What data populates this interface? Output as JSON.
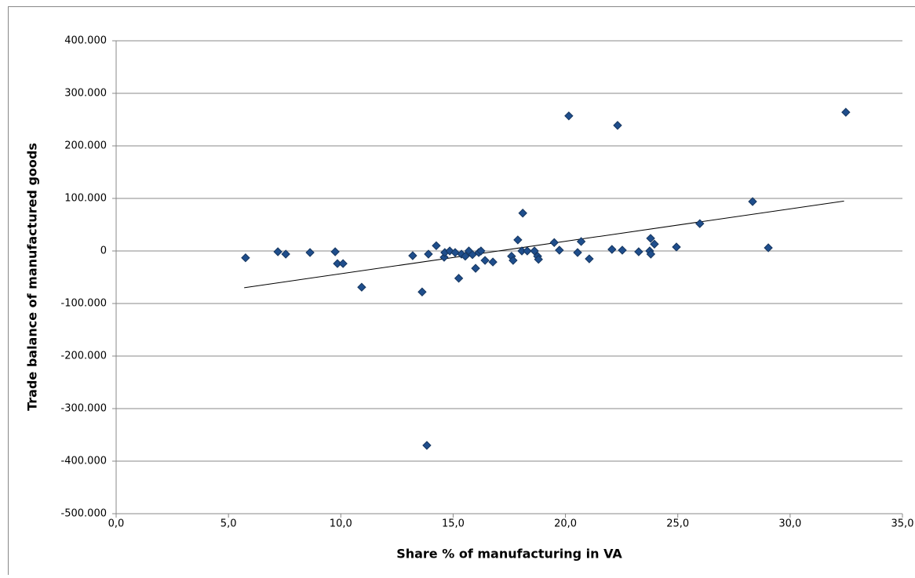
{
  "chart_data": {
    "type": "scatter",
    "xlabel": "Share % of manufacturing in VA",
    "ylabel": "Trade balance of manufactured goods",
    "xlim": [
      0,
      35
    ],
    "ylim": [
      -500000,
      400000
    ],
    "xticks": [
      {
        "value": 0,
        "label": "0,0"
      },
      {
        "value": 5,
        "label": "5,0"
      },
      {
        "value": 10,
        "label": "10,0"
      },
      {
        "value": 15,
        "label": "15,0"
      },
      {
        "value": 20,
        "label": "20,0"
      },
      {
        "value": 25,
        "label": "25,0"
      },
      {
        "value": 30,
        "label": "30,0"
      },
      {
        "value": 35,
        "label": "35,0"
      }
    ],
    "yticks": [
      {
        "value": -500000,
        "label": "-500.000"
      },
      {
        "value": -400000,
        "label": "-400.000"
      },
      {
        "value": -300000,
        "label": "-300.000"
      },
      {
        "value": -200000,
        "label": "-200.000"
      },
      {
        "value": -100000,
        "label": "-100.000"
      },
      0,
      {
        "value": 100000,
        "label": "100.000"
      },
      {
        "value": 200000,
        "label": "200.000"
      },
      {
        "value": 300000,
        "label": "300.000"
      },
      {
        "value": 400000,
        "label": "400.000"
      }
    ],
    "grid": true,
    "color": "#1f4e8c",
    "x": [
      5.76,
      7.2,
      7.55,
      8.63,
      9.75,
      9.85,
      10.1,
      10.93,
      13.2,
      13.62,
      13.83,
      13.9,
      14.25,
      14.6,
      14.63,
      14.85,
      15.09,
      15.25,
      15.37,
      15.54,
      15.7,
      15.86,
      16.0,
      16.14,
      16.24,
      16.42,
      16.77,
      17.6,
      17.67,
      17.88,
      18.06,
      18.1,
      18.3,
      18.62,
      18.76,
      18.8,
      19.5,
      19.73,
      20.15,
      20.54,
      20.7,
      21.06,
      22.07,
      22.32,
      22.53,
      23.26,
      23.75,
      23.79,
      23.8,
      23.96,
      24.94,
      25.98,
      28.33,
      29.03,
      32.48
    ],
    "y": [
      -13000,
      -1500,
      -6000,
      -3000,
      -1500,
      -24000,
      -24000,
      -69000,
      -9000,
      -78000,
      -370000,
      -6000,
      10000,
      -12000,
      -3000,
      0,
      -3000,
      -52000,
      -6000,
      -10000,
      0,
      -7000,
      -33000,
      -3000,
      0,
      -18000,
      -21000,
      -10000,
      -18000,
      21000,
      0,
      72000,
      0,
      0,
      -10000,
      -16000,
      16000,
      1500,
      257000,
      -3000,
      18000,
      -15000,
      3000,
      239000,
      1500,
      -1500,
      0,
      24000,
      -6000,
      13000,
      7500,
      52000,
      94000,
      6000,
      264000
    ],
    "trendline": {
      "x": [
        5.7,
        32.4
      ],
      "y": [
        -70000,
        95000
      ],
      "color": "#000000"
    }
  }
}
